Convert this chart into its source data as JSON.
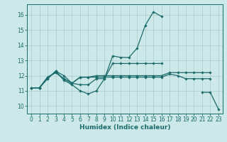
{
  "xlabel": "Humidex (Indice chaleur)",
  "ylabel": "",
  "xlim": [
    -0.5,
    23.5
  ],
  "ylim": [
    9.5,
    16.7
  ],
  "background_color": "#cce8e8",
  "grid_color": "#aacccc",
  "line_color": "#1a6b6b",
  "lines": [
    {
      "x": [
        0,
        1,
        2,
        3,
        4,
        5,
        6,
        7,
        8,
        9,
        10,
        11,
        12,
        13,
        14,
        15,
        16
      ],
      "y": [
        11.2,
        11.2,
        11.8,
        12.3,
        11.7,
        11.4,
        11.0,
        10.8,
        11.0,
        11.8,
        13.3,
        13.2,
        13.2,
        13.8,
        15.3,
        16.2,
        15.9
      ]
    },
    {
      "x": [
        21,
        22,
        23
      ],
      "y": [
        10.9,
        10.9,
        9.8
      ]
    },
    {
      "x": [
        0,
        1,
        2,
        3,
        4,
        5,
        6,
        7,
        8,
        9,
        10,
        11,
        12,
        13,
        14,
        15,
        16,
        17,
        18,
        19,
        20,
        21,
        22
      ],
      "y": [
        11.2,
        11.2,
        11.9,
        12.2,
        11.8,
        11.5,
        11.9,
        11.9,
        11.9,
        11.9,
        11.9,
        11.9,
        11.9,
        11.9,
        11.9,
        11.9,
        11.9,
        12.1,
        12.0,
        11.8,
        11.8,
        11.8,
        11.8
      ]
    },
    {
      "x": [
        0,
        1,
        2,
        3,
        4,
        5,
        6,
        7,
        8,
        9,
        10,
        11,
        12,
        13,
        14,
        15,
        16,
        17,
        18,
        19,
        20,
        21,
        22
      ],
      "y": [
        11.2,
        11.2,
        11.9,
        12.2,
        11.8,
        11.5,
        11.9,
        11.9,
        12.0,
        12.0,
        12.0,
        12.0,
        12.0,
        12.0,
        12.0,
        12.0,
        12.0,
        12.2,
        12.2,
        12.2,
        12.2,
        12.2,
        12.2
      ]
    },
    {
      "x": [
        0,
        1,
        2,
        3,
        4,
        5,
        6,
        7,
        8,
        9,
        10,
        11,
        12,
        13,
        14,
        15,
        16
      ],
      "y": [
        11.2,
        11.2,
        11.8,
        12.3,
        12.0,
        11.5,
        11.4,
        11.4,
        11.8,
        11.8,
        12.8,
        12.8,
        12.8,
        12.8,
        12.8,
        12.8,
        12.8
      ]
    }
  ],
  "xticks": [
    0,
    1,
    2,
    3,
    4,
    5,
    6,
    7,
    8,
    9,
    10,
    11,
    12,
    13,
    14,
    15,
    16,
    17,
    18,
    19,
    20,
    21,
    22,
    23
  ],
  "yticks": [
    10,
    11,
    12,
    13,
    14,
    15,
    16
  ],
  "axis_fontsize": 6.5,
  "tick_fontsize": 5.5,
  "marker_size": 1.8,
  "line_width": 0.9
}
